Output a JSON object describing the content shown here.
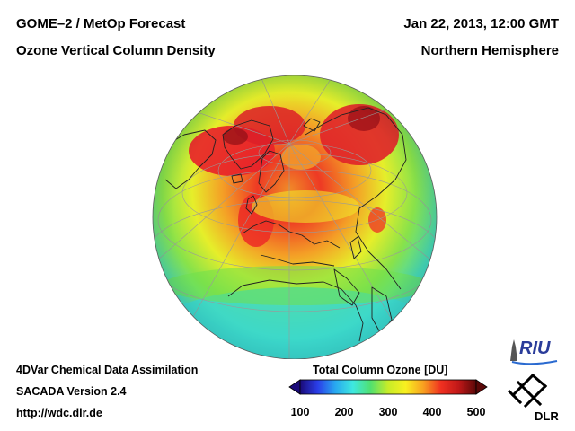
{
  "header": {
    "title_line1": "GOME–2 / MetOp Forecast",
    "title_line2": "Ozone Vertical Column Density",
    "date": "Jan 22, 2013, 12:00 GMT",
    "region": "Northern Hemisphere"
  },
  "footer": {
    "line1": "4DVar Chemical Data Assimilation",
    "line2": "SACADA Version 2.4",
    "line3": "http://wdc.dlr.de"
  },
  "legend": {
    "title": "Total Column Ozone [DU]",
    "ticks": [
      "100",
      "200",
      "300",
      "400",
      "500"
    ],
    "min": 100,
    "max": 500,
    "colors": [
      "#1a0a78",
      "#2a3ee8",
      "#28a8f0",
      "#3ee8e0",
      "#50e070",
      "#c8ec28",
      "#f8f020",
      "#f8a020",
      "#f03020",
      "#c01818",
      "#5a0808"
    ]
  },
  "logos": {
    "riu": "RIU",
    "dlr": "DLR"
  },
  "map": {
    "ocean_color": "#46dcc8",
    "coastline_color": "#222222",
    "grid_color": "#9a9a9a"
  }
}
